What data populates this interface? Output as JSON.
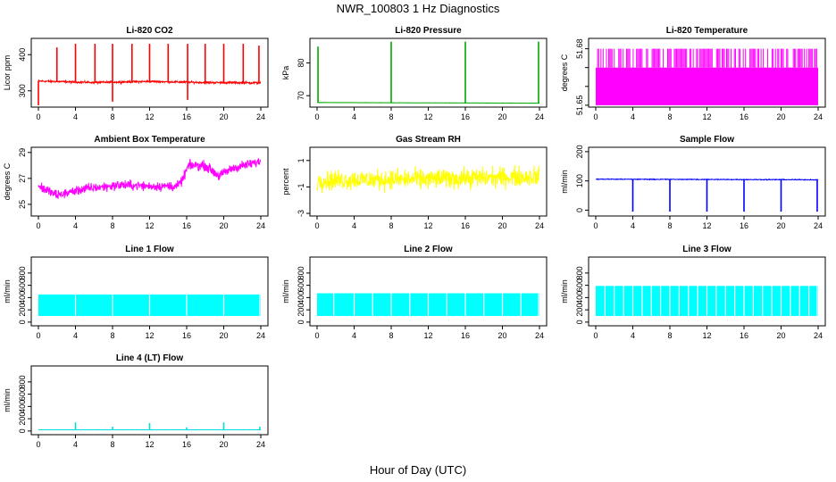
{
  "figure": {
    "title": "NWR_100803  1 Hz Diagnostics",
    "xlabel": "Hour of Day (UTC)"
  },
  "chart_data": [
    {
      "type": "line",
      "title": "Li-820 CO2",
      "ylabel": "Licor ppm",
      "color": "#ff0000",
      "xlim": [
        0,
        24
      ],
      "ylim": [
        255,
        445
      ],
      "yticks": [
        300,
        400
      ],
      "xticks": [
        0,
        4,
        8,
        12,
        16,
        20,
        24
      ],
      "base": 325,
      "noise": 4,
      "drift": [
        [
          0,
          327
        ],
        [
          6,
          323
        ],
        [
          12,
          326
        ],
        [
          18,
          323
        ],
        [
          24,
          322
        ]
      ],
      "spikes": [
        [
          2.0,
          420
        ],
        [
          4.0,
          430
        ],
        [
          6.1,
          430
        ],
        [
          8.0,
          430
        ],
        [
          10.1,
          430
        ],
        [
          12.0,
          430
        ],
        [
          14.0,
          430
        ],
        [
          16.1,
          430
        ],
        [
          18.0,
          430
        ],
        [
          20.0,
          430
        ],
        [
          22.1,
          430
        ],
        [
          23.8,
          425
        ],
        [
          0.0,
          260
        ],
        [
          8.0,
          270
        ],
        [
          16.1,
          275
        ]
      ]
    },
    {
      "type": "line",
      "title": "Li-820 Pressure",
      "ylabel": "kPa",
      "color": "#00aa00",
      "xlim": [
        0,
        24
      ],
      "ylim": [
        66.5,
        87.5
      ],
      "yticks": [
        70,
        80
      ],
      "xticks": [
        0,
        4,
        8,
        12,
        16,
        20,
        24
      ],
      "base": 67.8,
      "noise": 0.05,
      "drift": [
        [
          0,
          67.9
        ],
        [
          24,
          67.7
        ]
      ],
      "spikes": [
        [
          0.1,
          85.0
        ],
        [
          8.0,
          86.5
        ],
        [
          16.0,
          86.5
        ],
        [
          23.9,
          86.5
        ]
      ]
    },
    {
      "type": "band",
      "title": "Li-820 Temperature",
      "ylabel": "degrees C",
      "color": "#ff00ff",
      "xlim": [
        0,
        24
      ],
      "ylim": [
        51.649,
        51.6855
      ],
      "yticks": [
        51.65,
        51.66,
        51.67,
        51.68
      ],
      "ytick_labels": [
        "51.65",
        "",
        "",
        "51.68"
      ],
      "xticks": [
        0,
        4,
        8,
        12,
        16,
        20,
        24
      ],
      "low": 51.65,
      "high": 51.67,
      "upper": 51.68,
      "spike_density": 0.55
    },
    {
      "type": "line",
      "title": "Ambient Box Temperature",
      "ylabel": "degrees C",
      "color": "#ff00ff",
      "xlim": [
        0,
        24
      ],
      "ylim": [
        24.1,
        29.4
      ],
      "yticks": [
        25,
        27,
        29
      ],
      "xticks": [
        0,
        4,
        8,
        12,
        16,
        20,
        24
      ],
      "base": 26,
      "noise": 0.55,
      "drift": [
        [
          0,
          26.4
        ],
        [
          2,
          25.7
        ],
        [
          5,
          26.2
        ],
        [
          9,
          26.5
        ],
        [
          12,
          26.4
        ],
        [
          15,
          26.4
        ],
        [
          15.5,
          26.8
        ],
        [
          16.2,
          28.0
        ],
        [
          18,
          28.0
        ],
        [
          19.5,
          27.2
        ],
        [
          21,
          27.8
        ],
        [
          24,
          28.3
        ]
      ],
      "spikes": []
    },
    {
      "type": "line",
      "title": "Gas Stream RH",
      "ylabel": "percent",
      "color": "#ffff00",
      "xlim": [
        0,
        24
      ],
      "ylim": [
        -3.2,
        2.0
      ],
      "yticks": [
        -3,
        -1,
        1
      ],
      "xticks": [
        0,
        4,
        8,
        12,
        16,
        20,
        24
      ],
      "base": 0,
      "noise": 1.1,
      "drift": [
        [
          0,
          -0.5
        ],
        [
          12,
          -0.4
        ],
        [
          24,
          -0.2
        ]
      ],
      "spikes": []
    },
    {
      "type": "line",
      "title": "Sample Flow",
      "ylabel": "ml/min",
      "color": "#0000ff",
      "xlim": [
        0,
        24
      ],
      "ylim": [
        -20,
        215
      ],
      "yticks": [
        0,
        100,
        200
      ],
      "xticks": [
        0,
        4,
        8,
        12,
        16,
        20,
        24
      ],
      "base": 105,
      "noise": 2,
      "drift": [
        [
          0,
          106
        ],
        [
          24,
          104
        ]
      ],
      "spikes": [
        [
          4.0,
          -5
        ],
        [
          8.0,
          -5
        ],
        [
          12.0,
          -5
        ],
        [
          16.0,
          -5
        ],
        [
          20.0,
          -5
        ],
        [
          23.9,
          -5
        ]
      ]
    },
    {
      "type": "band",
      "title": "Line 1 Flow",
      "ylabel": "ml/min",
      "color": "#00ffff",
      "xlim": [
        0,
        24
      ],
      "ylim": [
        -60,
        1060
      ],
      "yticks": [
        0,
        200,
        400,
        600,
        800
      ],
      "xticks": [
        0,
        4,
        8,
        12,
        16,
        20,
        24
      ],
      "low": 100,
      "high": 450,
      "gaps": [
        4.0,
        8.0,
        12.0,
        16.0,
        20.0,
        23.9
      ]
    },
    {
      "type": "band",
      "title": "Line 2 Flow",
      "ylabel": "ml/min",
      "color": "#00ffff",
      "xlim": [
        0,
        24
      ],
      "ylim": [
        -60,
        1060
      ],
      "yticks": [
        0,
        200,
        400,
        600,
        800
      ],
      "xticks": [
        0,
        4,
        8,
        12,
        16,
        20,
        24
      ],
      "low": 100,
      "high": 470,
      "gaps": [
        1.8,
        4.0,
        6.0,
        8.0,
        10.0,
        12.0,
        14.0,
        16.0,
        18.0,
        20.0,
        22.0,
        23.9
      ]
    },
    {
      "type": "band",
      "title": "Line 3 Flow",
      "ylabel": "ml/min",
      "color": "#00ffff",
      "xlim": [
        0,
        24
      ],
      "ylim": [
        -60,
        1060
      ],
      "yticks": [
        0,
        200,
        400,
        600,
        800
      ],
      "xticks": [
        0,
        4,
        8,
        12,
        16,
        20,
        24
      ],
      "low": 100,
      "high": 590,
      "gaps": [
        1.0,
        2.0,
        3.0,
        4.0,
        5.0,
        6.0,
        7.0,
        8.0,
        9.0,
        10.0,
        11.0,
        12.0,
        13.0,
        14.0,
        15.0,
        16.0,
        17.0,
        18.0,
        19.0,
        20.0,
        21.0,
        22.0,
        23.0,
        23.9
      ]
    },
    {
      "type": "line",
      "title": "Line 4 (LT) Flow",
      "ylabel": "ml/min",
      "color": "#00dddd",
      "xlim": [
        0,
        24
      ],
      "ylim": [
        -60,
        1060
      ],
      "yticks": [
        0,
        200,
        400,
        600,
        800
      ],
      "xticks": [
        0,
        4,
        8,
        12,
        16,
        20,
        24
      ],
      "base": 20,
      "noise": 3,
      "drift": [
        [
          0,
          20
        ],
        [
          24,
          20
        ]
      ],
      "spikes": [
        [
          4.0,
          140
        ],
        [
          8.0,
          70
        ],
        [
          12.0,
          130
        ],
        [
          16.0,
          60
        ],
        [
          20.0,
          140
        ],
        [
          23.9,
          70
        ]
      ]
    }
  ]
}
